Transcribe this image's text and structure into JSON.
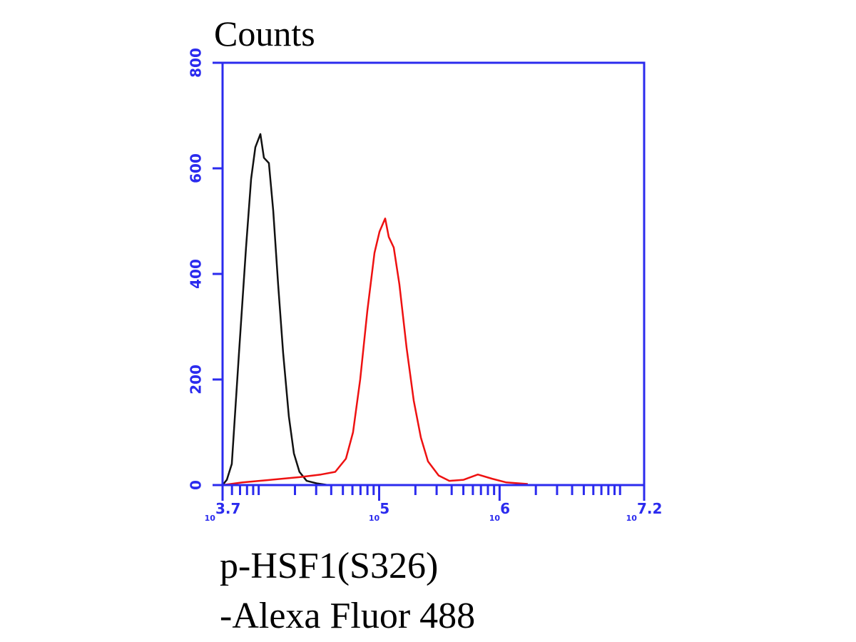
{
  "chart_data": {
    "type": "line",
    "title": "Counts",
    "xlabel": [
      "p-HSF1(S326)",
      "-Alexa Fluor 488"
    ],
    "xscale": "log",
    "xlim": [
      5011.87,
      15848932
    ],
    "ylim": [
      0,
      800
    ],
    "yticks": [
      0,
      200,
      400,
      600,
      800
    ],
    "xticks": [
      {
        "value": 5011.87,
        "base": "10",
        "exponent": "3.7"
      },
      {
        "value": 100000,
        "base": "10",
        "exponent": "5"
      },
      {
        "value": 1000000,
        "base": "10",
        "exponent": "6"
      },
      {
        "value": 15848932,
        "base": "10",
        "exponent": "7.2"
      }
    ],
    "xminor": [
      6000,
      7000,
      8000,
      9000,
      10000,
      20000,
      30000,
      40000,
      50000,
      60000,
      70000,
      80000,
      90000,
      200000,
      300000,
      400000,
      500000,
      600000,
      700000,
      800000,
      900000,
      2000000,
      3000000,
      4000000,
      5000000,
      6000000,
      7000000,
      8000000,
      9000000,
      10000000
    ],
    "axis_color": "#2b2bee",
    "series": [
      {
        "color": "#111111",
        "x": [
          5012,
          5440,
          5980,
          6860,
          7850,
          8650,
          9380,
          10330,
          11050,
          12150,
          13200,
          14500,
          15960,
          17800,
          19600,
          21800,
          25000,
          30700,
          37600
        ],
        "values": [
          0,
          10,
          40,
          250,
          450,
          580,
          640,
          665,
          620,
          610,
          520,
          380,
          250,
          130,
          60,
          25,
          8,
          3,
          0
        ]
      },
      {
        "color": "#ee1111",
        "x": [
          5012,
          7340,
          12680,
          21800,
          32900,
          43200,
          53000,
          60700,
          69600,
          79800,
          91500,
          100700,
          112200,
          120200,
          132200,
          147300,
          169000,
          193700,
          222000,
          254300,
          312000,
          382700,
          502500,
          660000,
          866400,
          1138000,
          1713000
        ],
        "values": [
          0,
          5,
          10,
          15,
          20,
          25,
          50,
          100,
          200,
          330,
          440,
          480,
          505,
          470,
          450,
          380,
          260,
          160,
          90,
          45,
          18,
          8,
          10,
          20,
          12,
          5,
          2
        ]
      }
    ]
  }
}
